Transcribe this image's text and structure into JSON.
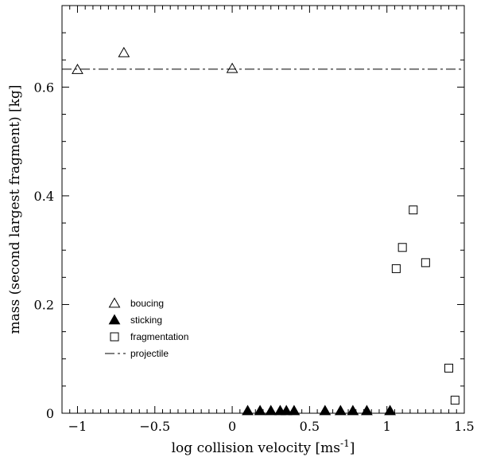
{
  "chart_data": {
    "type": "scatter",
    "xlabel": "log collision velocity [ms",
    "xlabel_superscript": "-1",
    "xlabel_suffix": "]",
    "ylabel": "mass (second largest fragment) [kg]",
    "xlim": [
      -1.1,
      1.5
    ],
    "ylim": [
      0,
      0.75
    ],
    "x_ticks": [
      -1,
      -0.5,
      0,
      0.5,
      1,
      1.5
    ],
    "x_tick_labels": [
      "−1",
      "−0.5",
      "0",
      "0.5",
      "1",
      "1.5"
    ],
    "y_ticks": [
      0,
      0.2,
      0.4,
      0.6
    ],
    "y_tick_labels": [
      "0",
      "0.2",
      "0.4",
      "0.6"
    ],
    "legend_position": "bottom-left",
    "series": [
      {
        "name": "boucing",
        "marker": "open-triangle",
        "points": [
          [
            -1.0,
            0.632
          ],
          [
            -0.7,
            0.663
          ],
          [
            0.0,
            0.634
          ]
        ]
      },
      {
        "name": "sticking",
        "marker": "filled-triangle",
        "points": [
          [
            0.1,
            0.0
          ],
          [
            0.18,
            0.0
          ],
          [
            0.25,
            0.0
          ],
          [
            0.31,
            0.0
          ],
          [
            0.35,
            0.0
          ],
          [
            0.4,
            0.0
          ],
          [
            0.6,
            0.0
          ],
          [
            0.7,
            0.0
          ],
          [
            0.78,
            0.0
          ],
          [
            0.87,
            0.0
          ],
          [
            1.02,
            0.0
          ]
        ]
      },
      {
        "name": "fragmentation",
        "marker": "open-square",
        "points": [
          [
            1.06,
            0.266
          ],
          [
            1.1,
            0.305
          ],
          [
            1.17,
            0.374
          ],
          [
            1.25,
            0.277
          ],
          [
            1.4,
            0.083
          ],
          [
            1.44,
            0.024
          ]
        ]
      },
      {
        "name": "projectile",
        "marker": "dash-dot-line",
        "y": 0.633
      }
    ]
  }
}
